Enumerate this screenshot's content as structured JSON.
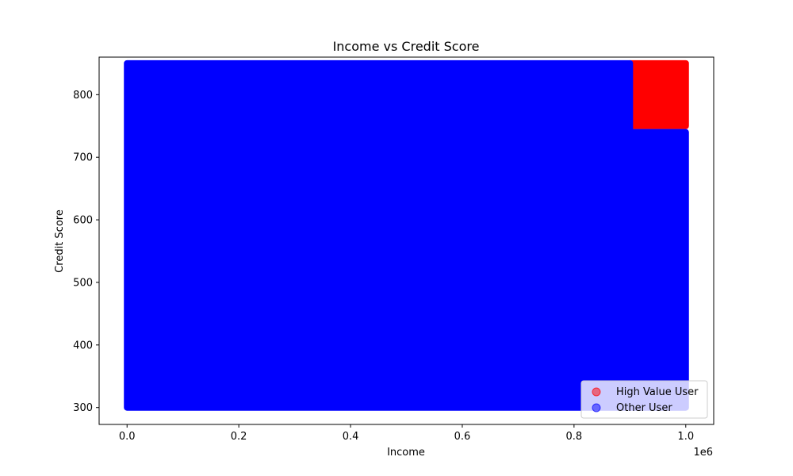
{
  "chart_data": {
    "type": "scatter",
    "title": "Income vs Credit Score",
    "xlabel": "Income",
    "ylabel": "Credit Score",
    "x_offset_label": "1e6",
    "xlim": [
      -50000,
      1050000
    ],
    "ylim": [
      273,
      860
    ],
    "xticks": [
      0,
      200000,
      400000,
      600000,
      800000,
      1000000
    ],
    "xtick_labels": [
      "0.0",
      "0.2",
      "0.4",
      "0.6",
      "0.8",
      "1.0"
    ],
    "yticks": [
      300,
      400,
      500,
      600,
      700,
      800
    ],
    "ytick_labels": [
      "300",
      "400",
      "500",
      "600",
      "700",
      "800"
    ],
    "grid": false,
    "legend_position": "lower-right",
    "series": [
      {
        "name": "High Value User",
        "color": "#ff0000",
        "alpha": 0.5,
        "regions": [
          {
            "x_range": [
              900000,
              1000000
            ],
            "y_range": [
              750,
              850
            ]
          }
        ]
      },
      {
        "name": "Other User",
        "color": "#0000ff",
        "alpha": 0.5,
        "regions": [
          {
            "x_range": [
              0,
              900000
            ],
            "y_range": [
              300,
              850
            ]
          },
          {
            "x_range": [
              900000,
              1000000
            ],
            "y_range": [
              300,
              740
            ]
          }
        ]
      }
    ]
  }
}
